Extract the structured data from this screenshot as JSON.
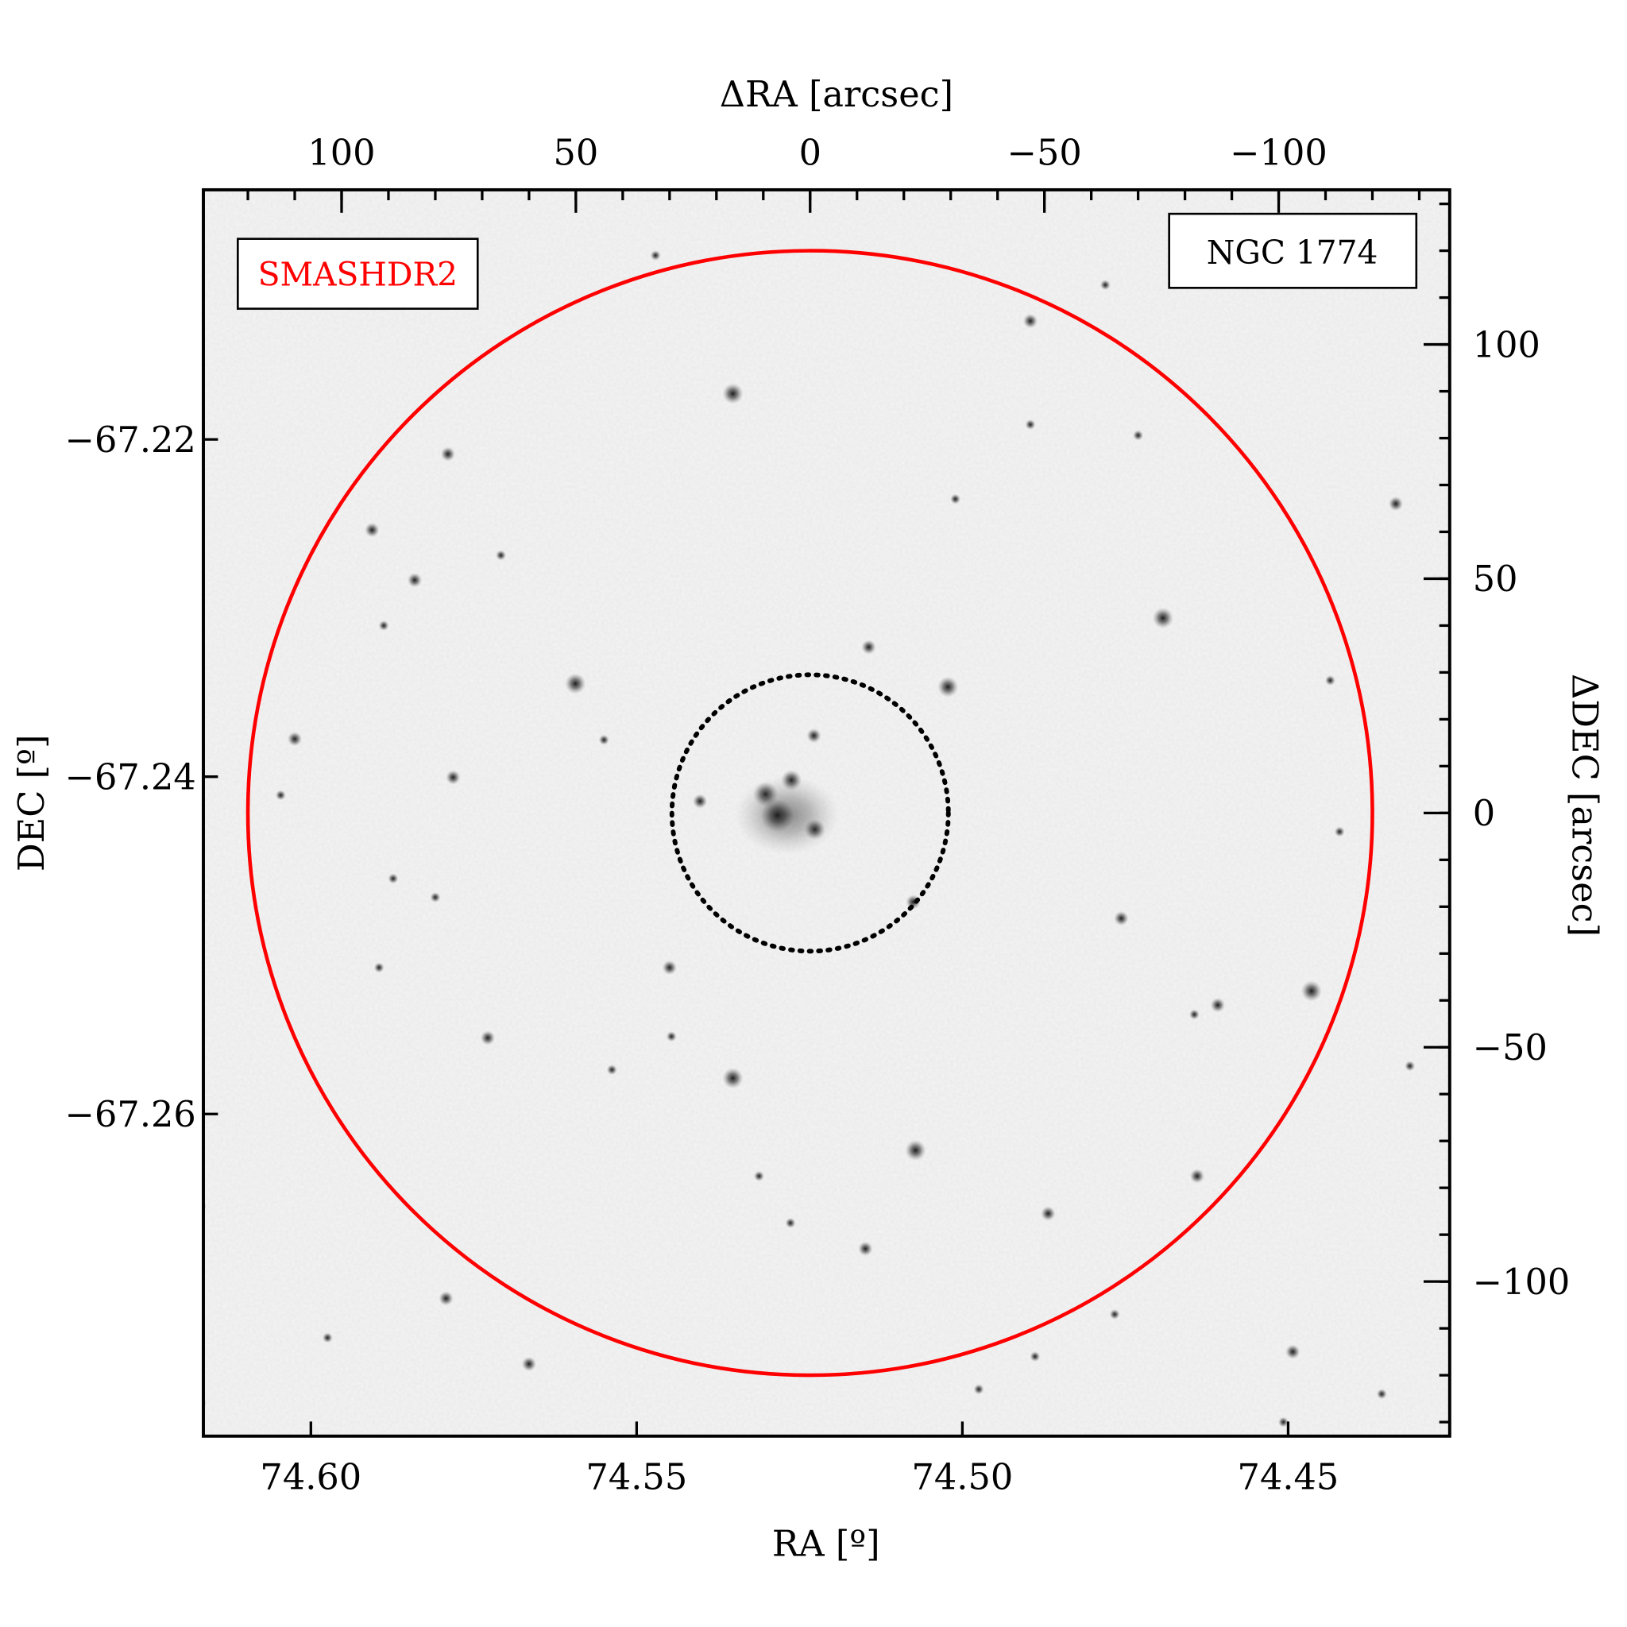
{
  "chart_data": {
    "type": "scatter",
    "title": "",
    "object_label": "NGC 1774",
    "survey_label": "SMASHDR2",
    "xlabel": "RA [º]",
    "ylabel": "DEC [º]",
    "x2label": "ΔRA [arcsec]",
    "y2label": "ΔDEC [arcsec]",
    "xlim": [
      74.6165,
      74.4252
    ],
    "ylim": [
      -67.2791,
      -67.2052
    ],
    "x2lim": [
      129.5,
      -136.5
    ],
    "y2lim": [
      -133,
      133
    ],
    "xticks": [
      {
        "value": 74.6,
        "label": "74.60"
      },
      {
        "value": 74.55,
        "label": "74.55"
      },
      {
        "value": 74.5,
        "label": "74.50"
      },
      {
        "value": 74.45,
        "label": "74.45"
      }
    ],
    "yticks": [
      {
        "value": -67.22,
        "label": "−67.22"
      },
      {
        "value": -67.24,
        "label": "−67.24"
      },
      {
        "value": -67.26,
        "label": "−67.26"
      }
    ],
    "x2ticks": [
      {
        "value": 100,
        "label": "100"
      },
      {
        "value": 50,
        "label": "50"
      },
      {
        "value": 0,
        "label": "0"
      },
      {
        "value": -50,
        "label": "−50"
      },
      {
        "value": -100,
        "label": "−100"
      }
    ],
    "y2ticks": [
      {
        "value": 100,
        "label": "100"
      },
      {
        "value": 50,
        "label": "50"
      },
      {
        "value": 0,
        "label": "0"
      },
      {
        "value": -50,
        "label": "−50"
      },
      {
        "value": -100,
        "label": "−100"
      }
    ],
    "minor_tick_step_arcsec": 10,
    "circles": [
      {
        "name": "field-radius",
        "radius_arcsec": 120,
        "style": "solid",
        "color": "#ff0000"
      },
      {
        "name": "cluster-radius",
        "radius_arcsec": 29.5,
        "style": "dotted",
        "color": "#000000"
      }
    ],
    "colors": {
      "survey_label": "#ff0000",
      "background": "#f3f3f3",
      "stars": "#1a1a1a"
    },
    "stars_arcsec": [
      [
        16.5,
        89.5,
        3
      ],
      [
        77.3,
        76.6,
        2
      ],
      [
        93.5,
        60.4,
        2
      ],
      [
        84.4,
        49.7,
        2
      ],
      [
        50.1,
        27.6,
        3
      ],
      [
        110,
        15.8,
        2
      ],
      [
        76.2,
        7.6,
        2
      ],
      [
        113,
        3.8,
        1
      ],
      [
        -75.3,
        41.6,
        3
      ],
      [
        -29.4,
        26.9,
        3
      ],
      [
        -12.5,
        35.4,
        2
      ],
      [
        -47,
        105,
        2
      ],
      [
        -47,
        82.9,
        1
      ],
      [
        -111,
        28.3,
        1
      ],
      [
        -125,
        66,
        2
      ],
      [
        -66.4,
        -22.5,
        2
      ],
      [
        -107,
        -38,
        3
      ],
      [
        -87,
        -41,
        2
      ],
      [
        -82,
        -43,
        1
      ],
      [
        16.5,
        -56.6,
        3
      ],
      [
        68.8,
        -48,
        2
      ],
      [
        30,
        -33,
        2
      ],
      [
        29.6,
        -47.7,
        1
      ],
      [
        42.3,
        -54.8,
        1
      ],
      [
        -22.5,
        -72,
        3
      ],
      [
        -82.6,
        -77.5,
        2
      ],
      [
        -50.8,
        -85.5,
        2
      ],
      [
        -11.8,
        -93,
        2
      ],
      [
        10.9,
        -77.5,
        1
      ],
      [
        4.2,
        -87.5,
        1
      ],
      [
        77.7,
        -103.6,
        2
      ],
      [
        60,
        -117.6,
        2
      ],
      [
        -48,
        -116,
        1
      ],
      [
        -103,
        -115,
        2
      ],
      [
        -101,
        -130,
        1
      ],
      [
        -36,
        -123,
        1
      ],
      [
        33,
        119,
        1
      ],
      [
        -63,
        112.7,
        1
      ],
      [
        -70,
        80.6,
        1
      ],
      [
        -31,
        67,
        1
      ],
      [
        66,
        55,
        1
      ],
      [
        91,
        40,
        1
      ],
      [
        44,
        15.6,
        1
      ],
      [
        89,
        -14,
        1
      ],
      [
        80,
        -18,
        1
      ],
      [
        92,
        -33,
        1
      ],
      [
        -113,
        -4,
        1
      ],
      [
        -128,
        -54,
        1
      ],
      [
        103,
        -112,
        1
      ],
      [
        130,
        -126,
        1
      ],
      [
        -122,
        -124,
        1
      ],
      [
        130,
        -84,
        1
      ],
      [
        -65,
        -107,
        1
      ],
      [
        7,
        -0.5,
        5
      ],
      [
        4,
        7,
        3
      ],
      [
        9.5,
        4,
        4
      ],
      [
        -1,
        -3.5,
        3
      ],
      [
        -0.8,
        16.5,
        2
      ],
      [
        23.5,
        2.5,
        2
      ],
      [
        -22,
        -19,
        2
      ]
    ]
  }
}
